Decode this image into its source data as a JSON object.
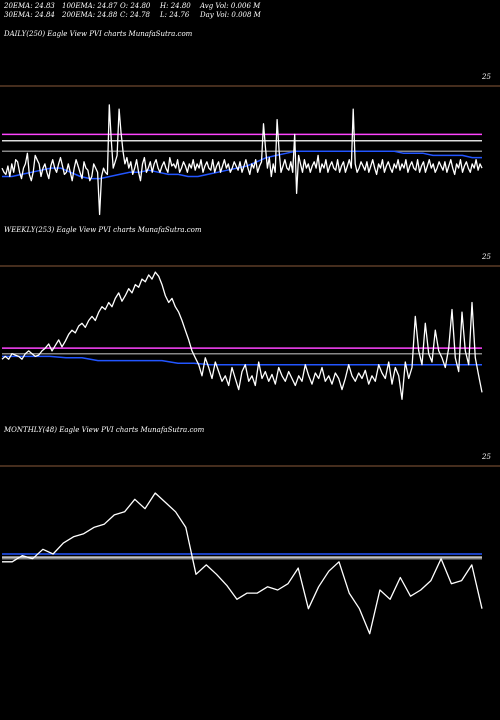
{
  "header": {
    "row1": [
      {
        "label": "20EMA: 24.83"
      },
      {
        "label": "100EMA: 24.87"
      },
      {
        "label": "O: 24.80"
      },
      {
        "label": "H: 24.80"
      },
      {
        "label": "Avg Vol: 0.006  M"
      }
    ],
    "row2": [
      {
        "label": "30EMA: 24.84"
      },
      {
        "label": "200EMA: 24.88"
      },
      {
        "label": "C: 24.78"
      },
      {
        "label": "L: 24.76"
      },
      {
        "label": "Day Vol: 0.008 M"
      }
    ]
  },
  "panels": [
    {
      "label": "DAILY(250) Eagle   View  PVI charts MunafaSutra.com",
      "ylabel": "25"
    },
    {
      "label": "WEEKLY(253) Eagle   View  PVI charts MunafaSutra.com",
      "ylabel": "25"
    },
    {
      "label": "MONTHLY(48) Eagle   View  PVI charts MunafaSutra.com",
      "ylabel": "25"
    }
  ],
  "colors": {
    "background": "#000000",
    "price_line": "#ffffff",
    "ema_blue": "#2255ff",
    "ema_magenta": "#ff44ff",
    "ema_gray": "#888888",
    "ema_white": "#dddddd",
    "separator": "#8a5a3a"
  },
  "chart_data": [
    {
      "type": "line",
      "title": "DAILY(250) Eagle   View  PVI charts MunafaSutra.com",
      "ylabel_tick": "25",
      "ylim": [
        24.55,
        25.2
      ],
      "series": [
        {
          "color": "#ffffff",
          "values": [
            24.82,
            24.8,
            24.79,
            24.83,
            24.78,
            24.84,
            24.8,
            24.86,
            24.85,
            24.8,
            24.77,
            24.82,
            24.84,
            24.89,
            24.79,
            24.76,
            24.8,
            24.88,
            24.86,
            24.84,
            24.78,
            24.82,
            24.84,
            24.8,
            24.77,
            24.83,
            24.86,
            24.82,
            24.8,
            24.84,
            24.87,
            24.83,
            24.79,
            24.8,
            24.84,
            24.8,
            24.76,
            24.82,
            24.86,
            24.83,
            24.8,
            24.77,
            24.85,
            24.82,
            24.81,
            24.76,
            24.78,
            24.84,
            24.82,
            24.8,
            24.6,
            24.78,
            24.82,
            24.8,
            24.79,
            25.12,
            24.95,
            24.82,
            24.85,
            24.88,
            25.1,
            24.99,
            24.9,
            24.84,
            24.87,
            24.82,
            24.85,
            24.79,
            24.82,
            24.86,
            24.8,
            24.76,
            24.84,
            24.87,
            24.8,
            24.82,
            24.85,
            24.8,
            24.84,
            24.86,
            24.82,
            24.8,
            24.83,
            24.85,
            24.82,
            24.8,
            24.87,
            24.83,
            24.84,
            24.82,
            24.86,
            24.8,
            24.82,
            24.85,
            24.83,
            24.8,
            24.84,
            24.82,
            24.86,
            24.81,
            24.84,
            24.82,
            24.86,
            24.8,
            24.83,
            24.85,
            24.82,
            24.81,
            24.86,
            24.8,
            24.83,
            24.85,
            24.8,
            24.83,
            24.86,
            24.82,
            24.84,
            24.8,
            24.82,
            24.85,
            24.83,
            24.81,
            24.85,
            24.8,
            24.83,
            24.86,
            24.82,
            24.79,
            24.84,
            24.82,
            24.86,
            24.8,
            24.83,
            24.85,
            25.03,
            24.92,
            24.82,
            24.87,
            24.78,
            24.84,
            24.8,
            25.05,
            24.9,
            24.8,
            24.83,
            24.86,
            24.82,
            24.81,
            24.85,
            24.8,
            24.98,
            24.7,
            24.88,
            24.84,
            24.8,
            24.86,
            24.82,
            24.84,
            24.8,
            24.83,
            24.85,
            24.82,
            24.88,
            24.8,
            24.84,
            24.82,
            24.86,
            24.8,
            24.83,
            24.85,
            24.82,
            24.81,
            24.86,
            24.8,
            24.83,
            24.85,
            24.8,
            24.83,
            24.86,
            24.82,
            25.1,
            24.84,
            24.8,
            24.82,
            24.85,
            24.83,
            24.81,
            24.85,
            24.8,
            24.83,
            24.86,
            24.82,
            24.79,
            24.84,
            24.82,
            24.86,
            24.8,
            24.83,
            24.85,
            24.82,
            24.8,
            24.84,
            24.82,
            24.86,
            24.81,
            24.84,
            24.82,
            24.86,
            24.8,
            24.83,
            24.85,
            24.82,
            24.81,
            24.86,
            24.8,
            24.83,
            24.85,
            24.8,
            24.83,
            24.86,
            24.82,
            24.84,
            24.8,
            24.82,
            24.85,
            24.83,
            24.81,
            24.85,
            24.8,
            24.83,
            24.86,
            24.82,
            24.79,
            24.84,
            24.82,
            24.86,
            24.8,
            24.83,
            24.85,
            24.82,
            24.8,
            24.84,
            24.82,
            24.86,
            24.81,
            24.84,
            24.82
          ]
        },
        {
          "color": "#2255ff",
          "values": [
            24.78,
            24.78,
            24.79,
            24.8,
            24.81,
            24.82,
            24.82,
            24.8,
            24.78,
            24.77,
            24.77,
            24.78,
            24.79,
            24.8,
            24.8,
            24.81,
            24.8,
            24.79,
            24.79,
            24.78,
            24.78,
            24.79,
            24.8,
            24.81,
            24.82,
            24.83,
            24.85,
            24.87,
            24.88,
            24.89,
            24.9,
            24.9,
            24.9,
            24.9,
            24.9,
            24.9,
            24.9,
            24.9,
            24.9,
            24.9,
            24.9,
            24.89,
            24.89,
            24.89,
            24.88,
            24.88,
            24.88,
            24.88,
            24.87,
            24.87
          ]
        },
        {
          "color": "#ff44ff",
          "values": [
            24.98,
            24.98
          ]
        },
        {
          "color": "#dddddd",
          "values": [
            24.95,
            24.95
          ]
        },
        {
          "color": "#888888",
          "values": [
            24.9,
            24.9
          ]
        }
      ]
    },
    {
      "type": "line",
      "title": "WEEKLY(253) Eagle   View  PVI charts MunafaSutra.com",
      "ylabel_tick": "25",
      "ylim": [
        24.4,
        25.5
      ],
      "series": [
        {
          "color": "#ffffff",
          "values": [
            24.84,
            24.86,
            24.84,
            24.88,
            24.87,
            24.86,
            24.84,
            24.88,
            24.9,
            24.88,
            24.86,
            24.87,
            24.9,
            24.92,
            24.95,
            24.9,
            24.94,
            24.98,
            24.93,
            24.97,
            25.02,
            25.05,
            25.03,
            25.08,
            25.1,
            25.07,
            25.12,
            25.15,
            25.12,
            25.18,
            25.22,
            25.2,
            25.25,
            25.22,
            25.28,
            25.32,
            25.26,
            25.3,
            25.35,
            25.32,
            25.38,
            25.36,
            25.42,
            25.4,
            25.45,
            25.42,
            25.47,
            25.44,
            25.38,
            25.3,
            25.25,
            25.28,
            25.22,
            25.18,
            25.12,
            25.05,
            24.98,
            24.9,
            24.85,
            24.8,
            24.72,
            24.85,
            24.78,
            24.7,
            24.82,
            24.75,
            24.68,
            24.72,
            24.65,
            24.78,
            24.7,
            24.62,
            24.75,
            24.8,
            24.68,
            24.72,
            24.65,
            24.82,
            24.7,
            24.75,
            24.68,
            24.73,
            24.66,
            24.78,
            24.72,
            24.68,
            24.75,
            24.7,
            24.65,
            24.72,
            24.68,
            24.8,
            24.72,
            24.66,
            24.74,
            24.7,
            24.78,
            24.68,
            24.72,
            24.66,
            24.74,
            24.7,
            24.62,
            24.7,
            24.8,
            24.72,
            24.68,
            24.74,
            24.7,
            24.76,
            24.66,
            24.72,
            24.68,
            24.8,
            24.74,
            24.7,
            24.82,
            24.66,
            24.78,
            24.72,
            24.55,
            24.82,
            24.7,
            24.78,
            25.15,
            24.9,
            24.8,
            25.1,
            24.88,
            24.82,
            25.05,
            24.9,
            24.85,
            24.78,
            24.92,
            25.2,
            24.85,
            24.75,
            25.18,
            24.9,
            24.8,
            25.25,
            24.85,
            24.72,
            24.6
          ]
        },
        {
          "color": "#2255ff",
          "values": [
            24.86,
            24.86,
            24.86,
            24.86,
            24.85,
            24.85,
            24.83,
            24.83,
            24.83,
            24.83,
            24.83,
            24.81,
            24.81,
            24.8,
            24.8,
            24.8,
            24.8,
            24.8,
            24.8,
            24.8,
            24.8,
            24.8,
            24.8,
            24.8,
            24.8,
            24.8,
            24.8,
            24.8,
            24.8,
            24.8,
            24.8
          ]
        },
        {
          "color": "#ff44ff",
          "values": [
            24.92,
            24.92
          ]
        },
        {
          "color": "#888888",
          "values": [
            24.88,
            24.88
          ]
        }
      ]
    },
    {
      "type": "line",
      "title": "MONTHLY(48) Eagle   View  PVI charts MunafaSutra.com",
      "ylabel_tick": "25",
      "ylim": [
        24.4,
        25.5
      ],
      "series": [
        {
          "color": "#ffffff",
          "values": [
            24.9,
            24.9,
            24.94,
            24.92,
            24.98,
            24.95,
            25.02,
            25.06,
            25.08,
            25.12,
            25.14,
            25.2,
            25.22,
            25.3,
            25.24,
            25.34,
            25.28,
            25.22,
            25.12,
            24.82,
            24.88,
            24.82,
            24.75,
            24.66,
            24.7,
            24.7,
            24.74,
            24.72,
            24.76,
            24.86,
            24.6,
            24.74,
            24.84,
            24.9,
            24.7,
            24.6,
            24.44,
            24.72,
            24.66,
            24.8,
            24.68,
            24.72,
            24.78,
            24.92,
            24.76,
            24.78,
            24.88,
            24.6
          ]
        },
        {
          "color": "#2255ff",
          "values": [
            24.95,
            24.95
          ]
        },
        {
          "color": "#dddddd",
          "values": [
            24.93,
            24.93
          ]
        },
        {
          "color": "#888888",
          "values": [
            24.92,
            24.92
          ]
        }
      ]
    }
  ]
}
